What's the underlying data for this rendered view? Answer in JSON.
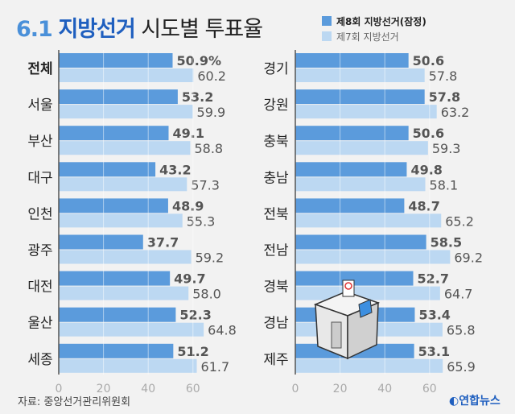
{
  "title": {
    "part1": "6.1",
    "part2": "지방선거",
    "part3": "시도별 투표율"
  },
  "source": "자료: 중앙선거관리위원회",
  "logo": "연합뉴스",
  "chart_data": [
    {
      "type": "bar",
      "orientation": "horizontal",
      "categories": [
        "전체",
        "서울",
        "부산",
        "대구",
        "인천",
        "광주",
        "대전",
        "울산",
        "세종"
      ],
      "series": [
        {
          "name": "제8회 지방선거(잠정)",
          "color": "#5b9bdc",
          "values": [
            50.9,
            53.2,
            49.1,
            43.2,
            48.9,
            37.7,
            49.7,
            52.3,
            51.2
          ]
        },
        {
          "name": "제7회 지방선거",
          "color": "#bcd8f2",
          "values": [
            60.2,
            59.9,
            58.8,
            57.3,
            55.3,
            59.2,
            58.0,
            64.8,
            61.7
          ]
        }
      ],
      "data_labels_first": [
        "50.9%",
        "53.2",
        "49.1",
        "43.2",
        "48.9",
        "37.7",
        "49.7",
        "52.3",
        "51.2"
      ],
      "data_labels_second": [
        "60.2",
        "59.9",
        "58.8",
        "57.3",
        "55.3",
        "59.2",
        "58.0",
        "64.8",
        "61.7"
      ],
      "xticks": [
        "0",
        "20",
        "40",
        "60"
      ],
      "xlim": [
        0,
        70
      ]
    },
    {
      "type": "bar",
      "orientation": "horizontal",
      "categories": [
        "경기",
        "강원",
        "충북",
        "충남",
        "전북",
        "전남",
        "경북",
        "경남",
        "제주"
      ],
      "series": [
        {
          "name": "제8회 지방선거(잠정)",
          "color": "#5b9bdc",
          "values": [
            50.6,
            57.8,
            50.6,
            49.8,
            48.7,
            58.5,
            52.7,
            53.4,
            53.1
          ]
        },
        {
          "name": "제7회 지방선거",
          "color": "#bcd8f2",
          "values": [
            57.8,
            63.2,
            59.3,
            58.1,
            65.2,
            69.2,
            64.7,
            65.8,
            65.9
          ]
        }
      ],
      "data_labels_first": [
        "50.6",
        "57.8",
        "50.6",
        "49.8",
        "48.7",
        "58.5",
        "52.7",
        "53.4",
        "53.1"
      ],
      "data_labels_second": [
        "57.8",
        "63.2",
        "59.3",
        "58.1",
        "65.2",
        "69.2",
        "64.7",
        "65.8",
        "65.9"
      ],
      "xticks": [
        "0",
        "20",
        "40",
        "60"
      ],
      "xlim": [
        0,
        70
      ]
    }
  ],
  "legend": [
    {
      "label": "제8회 지방선거(잠정)",
      "color": "#5b9bdc"
    },
    {
      "label": "제7회 지방선거",
      "color": "#bcd8f2"
    }
  ]
}
